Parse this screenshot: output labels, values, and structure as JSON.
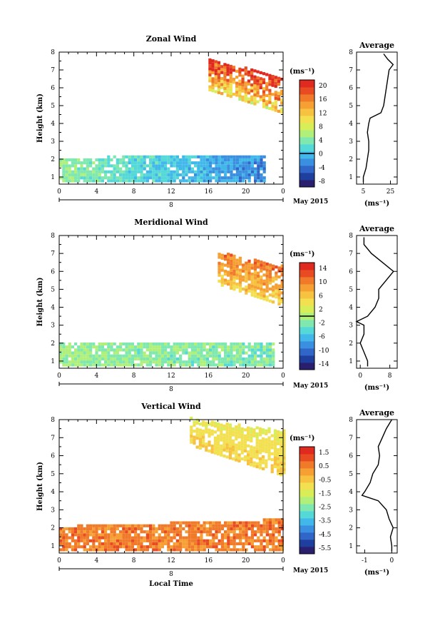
{
  "chart_data": [
    {
      "type": "heatmap",
      "title": "Zonal Wind",
      "ylabel": "Height (km)",
      "xlabel": "",
      "date_label": "May 2015",
      "day_label": "8",
      "xlim": [
        0,
        24
      ],
      "ylim": [
        0.6,
        8
      ],
      "x_ticks": [
        "0",
        "4",
        "8",
        "12",
        "16",
        "20",
        "0"
      ],
      "y_ticks": [
        "1",
        "2",
        "3",
        "4",
        "5",
        "6",
        "7",
        "8"
      ],
      "unit_label": "(ms⁻¹)",
      "colorbar_ticks": [
        "20",
        "16",
        "12",
        "8",
        "4",
        "0",
        "-4",
        "-8"
      ],
      "colorbar_range": [
        -10,
        22
      ],
      "zero_line": 0,
      "low_layer": {
        "x_start": 0,
        "x_end": 22,
        "y_bottom": 0.7,
        "y_top_start": 2.0,
        "y_top_end": 2.2,
        "value_start": 5,
        "value_end": -3
      },
      "upper_layer": {
        "x_start": 16,
        "x_end": 24,
        "y_bottom_start": 5.8,
        "y_bottom_end": 4.5,
        "y_top_start": 7.6,
        "y_top_end": 6.4,
        "value": 21
      },
      "average_profile": {
        "title": "Average",
        "xlim": [
          0,
          30
        ],
        "x_ticks": [
          "5",
          "25"
        ],
        "x_tick_values": [
          5,
          25
        ],
        "xlabel": "(ms⁻¹)",
        "heights": [
          0.7,
          1.0,
          1.5,
          2.0,
          2.5,
          3.0,
          3.5,
          4.0,
          4.3,
          4.6,
          5.0,
          5.5,
          6.0,
          6.5,
          7.0,
          7.3,
          7.6,
          7.9
        ],
        "values": [
          5,
          5,
          7,
          8,
          9,
          9,
          8,
          9,
          10,
          18,
          20,
          21,
          22,
          23,
          24,
          27,
          23,
          20
        ]
      }
    },
    {
      "type": "heatmap",
      "title": "Meridional Wind",
      "ylabel": "Height (km)",
      "xlabel": "",
      "date_label": "May 2015",
      "day_label": "8",
      "xlim": [
        0,
        24
      ],
      "ylim": [
        0.6,
        8
      ],
      "x_ticks": [
        "0",
        "4",
        "8",
        "12",
        "16",
        "20",
        "0"
      ],
      "y_ticks": [
        "1",
        "2",
        "3",
        "4",
        "5",
        "6",
        "7",
        "8"
      ],
      "unit_label": "(ms⁻¹)",
      "colorbar_ticks": [
        "14",
        "10",
        "6",
        "2",
        "-2",
        "-6",
        "-10",
        "-14"
      ],
      "colorbar_range": [
        -16,
        16
      ],
      "zero_line": 0,
      "low_layer": {
        "x_start": 0,
        "x_end": 23,
        "y_bottom": 0.7,
        "y_top_start": 1.9,
        "y_top_end": 1.9,
        "value_start": -1,
        "value_end": -2
      },
      "upper_layer": {
        "x_start": 17,
        "x_end": 24,
        "y_bottom_start": 5.2,
        "y_bottom_end": 4.0,
        "y_top_start": 7.0,
        "y_top_end": 6.2,
        "value": 11
      },
      "average_profile": {
        "title": "Average",
        "xlim": [
          -1,
          10
        ],
        "x_ticks": [
          "0",
          "8"
        ],
        "x_tick_values": [
          0,
          8
        ],
        "xlabel": "(ms⁻¹)",
        "heights": [
          0.7,
          1.0,
          1.5,
          2.0,
          2.5,
          3.0,
          3.2,
          3.5,
          4.0,
          4.5,
          5.0,
          5.5,
          6.0,
          6.5,
          7.0,
          7.5,
          7.9
        ],
        "values": [
          2,
          2,
          1,
          0,
          1,
          1,
          -1,
          2,
          4,
          5,
          5,
          7,
          9,
          6,
          3,
          1,
          1
        ]
      }
    },
    {
      "type": "heatmap",
      "title": "Vertical Wind",
      "ylabel": "Height (km)",
      "xlabel": "Local Time",
      "date_label": "May 2015",
      "day_label": "8",
      "xlim": [
        0,
        24
      ],
      "ylim": [
        0.6,
        8
      ],
      "x_ticks": [
        "0",
        "4",
        "8",
        "12",
        "16",
        "20",
        "0"
      ],
      "y_ticks": [
        "1",
        "2",
        "3",
        "4",
        "5",
        "6",
        "7",
        "8"
      ],
      "unit_label": "(ms⁻¹)",
      "colorbar_ticks": [
        "1.5",
        "0.5",
        "-0.5",
        "-1.5",
        "-2.5",
        "-3.5",
        "-4.5",
        "-5.5"
      ],
      "colorbar_range": [
        -6,
        2
      ],
      "zero_line": null,
      "low_layer": {
        "x_start": 0,
        "x_end": 24,
        "y_bottom": 0.7,
        "y_top_start": 2.0,
        "y_top_end": 2.4,
        "value_start": 0.6,
        "value_end": 0.6
      },
      "upper_layer": {
        "x_start": 14,
        "x_end": 24,
        "y_bottom_start": 6.5,
        "y_bottom_end": 4.8,
        "y_top_start": 8.0,
        "y_top_end": 7.3,
        "value": -1.2
      },
      "average_profile": {
        "title": "Average",
        "xlim": [
          -1.3,
          0.2
        ],
        "x_ticks": [
          "-1",
          "0"
        ],
        "x_tick_values": [
          -1,
          0
        ],
        "xlabel": "(ms⁻¹)",
        "heights": [
          0.7,
          1.0,
          1.5,
          2.0,
          2.5,
          3.0,
          3.5,
          3.8,
          4.0,
          4.5,
          5.0,
          5.5,
          6.0,
          6.5,
          7.0,
          7.5,
          8.0
        ],
        "values": [
          0,
          0,
          -0.05,
          0.05,
          -0.1,
          -0.2,
          -0.5,
          -1.1,
          -1.0,
          -0.8,
          -0.7,
          -0.5,
          -0.45,
          -0.5,
          -0.35,
          -0.2,
          0
        ]
      }
    }
  ]
}
